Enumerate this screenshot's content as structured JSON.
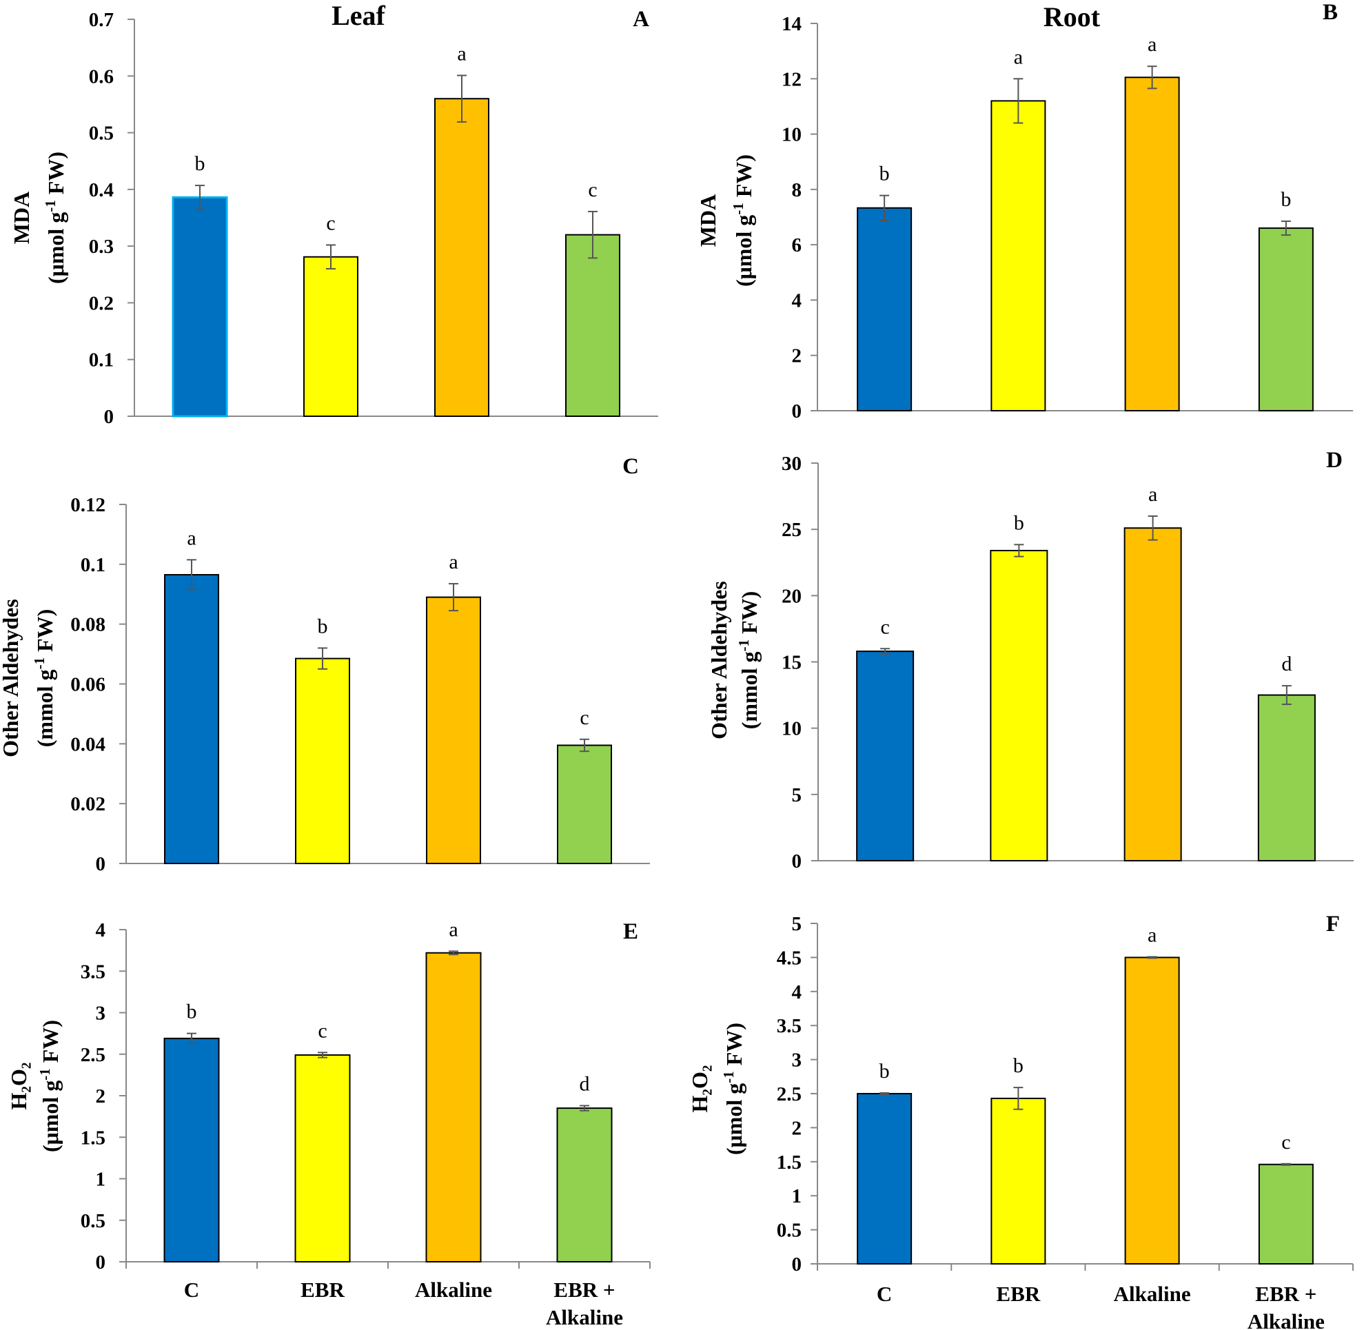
{
  "figure": {
    "categories": [
      "C",
      "EBR",
      "Alkaline",
      "EBR + Alkaline"
    ],
    "category_lines": [
      [
        "C"
      ],
      [
        "EBR"
      ],
      [
        "Alkaline"
      ],
      [
        "EBR +",
        "Alkaline"
      ]
    ],
    "colors": {
      "C": "#0070C0",
      "EBR": "#FFFF00",
      "Alkaline": "#FFC000",
      "EBR + Alkaline": "#92D050",
      "C_leaf_mda_outline": "#00B0F0",
      "axis": "#888888",
      "error_bar": "#555555"
    }
  },
  "chart_data": [
    {
      "id": "A",
      "type": "bar",
      "panel_letter": "A",
      "title": "Leaf",
      "ylabel_line1": "MDA",
      "ylabel_line2": "(μmol g",
      "ylabel_sup": "-1",
      "ylabel_line2_end": " FW)",
      "categories": [
        "C",
        "EBR",
        "Alkaline",
        "EBR + Alkaline"
      ],
      "values": [
        0.386,
        0.281,
        0.56,
        0.32
      ],
      "errors": [
        0.021,
        0.021,
        0.041,
        0.041
      ],
      "significance": [
        "b",
        "c",
        "a",
        "c"
      ],
      "ylim": [
        0,
        0.7
      ],
      "yticks": [
        0,
        0.1,
        0.2,
        0.3,
        0.4,
        0.5,
        0.6,
        0.7
      ],
      "ytick_labels": [
        "0",
        "0.1",
        "0.2",
        "0.3",
        "0.4",
        "0.5",
        "0.6",
        "0.7"
      ]
    },
    {
      "id": "B",
      "type": "bar",
      "panel_letter": "B",
      "title": "Root",
      "ylabel_line1": "MDA",
      "ylabel_line2": "(μmol g",
      "ylabel_sup": "-1",
      "ylabel_line2_end": " FW)",
      "categories": [
        "C",
        "EBR",
        "Alkaline",
        "EBR + Alkaline"
      ],
      "values": [
        7.33,
        11.2,
        12.05,
        6.6
      ],
      "errors": [
        0.45,
        0.8,
        0.4,
        0.25
      ],
      "significance": [
        "b",
        "a",
        "a",
        "b"
      ],
      "ylim": [
        0,
        14
      ],
      "yticks": [
        0,
        2,
        4,
        6,
        8,
        10,
        12,
        14
      ],
      "ytick_labels": [
        "0",
        "2",
        "4",
        "6",
        "8",
        "10",
        "12",
        "14"
      ]
    },
    {
      "id": "C",
      "type": "bar",
      "panel_letter": "C",
      "title": "",
      "ylabel_line1": "Other Aldehydes",
      "ylabel_line2": "(mmol g",
      "ylabel_sup": "-1",
      "ylabel_line2_end": " FW)",
      "categories": [
        "C",
        "EBR",
        "Alkaline",
        "EBR + Alkaline"
      ],
      "values": [
        0.0965,
        0.0685,
        0.089,
        0.0395
      ],
      "errors": [
        0.005,
        0.0035,
        0.0045,
        0.002
      ],
      "significance": [
        "a",
        "b",
        "a",
        "c"
      ],
      "ylim": [
        0,
        0.12
      ],
      "yticks": [
        0,
        0.02,
        0.04,
        0.06,
        0.08,
        0.1,
        0.12
      ],
      "ytick_labels": [
        "0",
        "0.02",
        "0.04",
        "0.06",
        "0.08",
        "0.1",
        "0.12"
      ]
    },
    {
      "id": "D",
      "type": "bar",
      "panel_letter": "D",
      "title": "",
      "ylabel_line1": "Other Aldehydes",
      "ylabel_line2": "(mmol g",
      "ylabel_sup": "-1",
      "ylabel_line2_end": " FW)",
      "categories": [
        "C",
        "EBR",
        "Alkaline",
        "EBR + Alkaline"
      ],
      "values": [
        15.8,
        23.4,
        25.1,
        12.5
      ],
      "errors": [
        0.2,
        0.45,
        0.9,
        0.7
      ],
      "significance": [
        "c",
        "b",
        "a",
        "d"
      ],
      "ylim": [
        0,
        30
      ],
      "yticks": [
        0,
        5,
        10,
        15,
        20,
        25,
        30
      ],
      "ytick_labels": [
        "0",
        "5",
        "10",
        "15",
        "20",
        "25",
        "30"
      ]
    },
    {
      "id": "E",
      "type": "bar",
      "panel_letter": "E",
      "title": "",
      "ylabel_line1": "H₂O₂",
      "ylabel_line2": "(μmol g",
      "ylabel_sup": "-1",
      "ylabel_line2_end": " FW)",
      "categories": [
        "C",
        "EBR",
        "Alkaline",
        "EBR + Alkaline"
      ],
      "values": [
        2.69,
        2.49,
        3.72,
        1.85
      ],
      "errors": [
        0.06,
        0.03,
        0.02,
        0.03
      ],
      "significance": [
        "b",
        "c",
        "a",
        "d"
      ],
      "ylim": [
        0,
        4
      ],
      "yticks": [
        0,
        0.5,
        1,
        1.5,
        2,
        2.5,
        3,
        3.5,
        4
      ],
      "ytick_labels": [
        "0",
        "0.5",
        "1",
        "1.5",
        "2",
        "2.5",
        "3",
        "3.5",
        "4"
      ]
    },
    {
      "id": "F",
      "type": "bar",
      "panel_letter": "F",
      "title": "",
      "ylabel_line1": "H₂O₂",
      "ylabel_line2": "(μmol g",
      "ylabel_sup": "-1",
      "ylabel_line2_end": " FW)",
      "categories": [
        "C",
        "EBR",
        "Alkaline",
        "EBR + Alkaline"
      ],
      "values": [
        2.5,
        2.43,
        4.5,
        1.46
      ],
      "errors": [
        0.01,
        0.16,
        0.01,
        0.01
      ],
      "significance": [
        "b",
        "b",
        "a",
        "c"
      ],
      "ylim": [
        0,
        5
      ],
      "yticks": [
        0,
        0.5,
        1,
        1.5,
        2,
        2.5,
        3,
        3.5,
        4,
        4.5,
        5
      ],
      "ytick_labels": [
        "0",
        "0.5",
        "1",
        "1.5",
        "2",
        "2.5",
        "3",
        "3.5",
        "4",
        "4.5",
        "5"
      ]
    }
  ]
}
